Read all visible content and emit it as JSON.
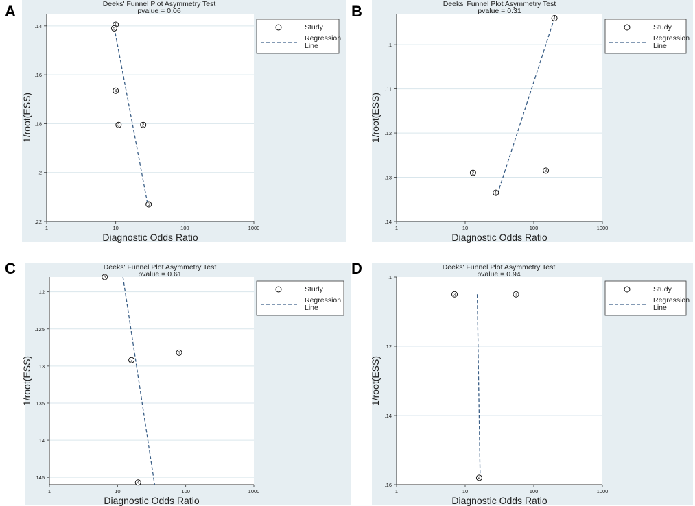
{
  "chart_data": [
    {
      "type": "scatter",
      "panel_label": "A",
      "title": "Deeks' Funnel Plot Asymmetry Test",
      "pvalue_label": "pvalue =",
      "pvalue": "0.06",
      "xlabel": "Diagnostic Odds Ratio",
      "ylabel": "1/root(ESS)",
      "x_scale": "log",
      "xlim": [
        1,
        1000
      ],
      "x_ticks": [
        "1",
        "10",
        "100",
        "1000"
      ],
      "ylim": [
        0.135,
        0.22
      ],
      "y_ticks": [
        ".14",
        ".16",
        ".18",
        ".2",
        ".22"
      ],
      "y_reversed": true,
      "points": [
        {
          "id": "1",
          "x": 10,
          "y": 0.1395
        },
        {
          "id": "5",
          "x": 9.5,
          "y": 0.141
        },
        {
          "id": "4",
          "x": 10,
          "y": 0.1665
        },
        {
          "id": "3",
          "x": 11,
          "y": 0.1805
        },
        {
          "id": "2",
          "x": 25,
          "y": 0.1805
        },
        {
          "id": "6",
          "x": 30,
          "y": 0.213
        }
      ],
      "regression_line": [
        {
          "x": 9.2,
          "y": 0.1385
        },
        {
          "x": 29,
          "y": 0.213
        }
      ],
      "legend": {
        "study": "Study",
        "regression": "Regression Line"
      }
    },
    {
      "type": "scatter",
      "panel_label": "B",
      "title": "Deeks' Funnel Plot Asymmetry Test",
      "pvalue_label": "pvalue =",
      "pvalue": "0.31",
      "xlabel": "Diagnostic Odds Ratio",
      "ylabel": "1/root(ESS)",
      "x_scale": "log",
      "xlim": [
        1,
        1000
      ],
      "x_ticks": [
        "1",
        "10",
        "100",
        "1000"
      ],
      "ylim": [
        0.093,
        0.14
      ],
      "y_ticks": [
        ".1",
        ".11",
        ".12",
        ".13",
        ".14"
      ],
      "y_reversed": true,
      "points": [
        {
          "id": "4",
          "x": 200,
          "y": 0.094
        },
        {
          "id": "2",
          "x": 13,
          "y": 0.129
        },
        {
          "id": "3",
          "x": 150,
          "y": 0.1285
        },
        {
          "id": "1",
          "x": 28,
          "y": 0.1335
        }
      ],
      "regression_line": [
        {
          "x": 200,
          "y": 0.094
        },
        {
          "x": 30,
          "y": 0.1335
        }
      ],
      "legend": {
        "study": "Study",
        "regression": "Regression Line"
      }
    },
    {
      "type": "scatter",
      "panel_label": "C",
      "title": "Deeks' Funnel Plot Asymmetry Test",
      "pvalue_label": "pvalue =",
      "pvalue": "0.61",
      "xlabel": "Diagnostic Odds Ratio",
      "ylabel": "1/root(ESS)",
      "x_scale": "log",
      "xlim": [
        1,
        1000
      ],
      "x_ticks": [
        "1",
        "10",
        "100",
        "1000"
      ],
      "ylim": [
        0.118,
        0.146
      ],
      "y_ticks": [
        ".12",
        ".125",
        ".13",
        ".135",
        ".14",
        ".145"
      ],
      "y_reversed": true,
      "points": [
        {
          "id": "3",
          "x": 6.5,
          "y": 0.118
        },
        {
          "id": "2",
          "x": 16,
          "y": 0.1292
        },
        {
          "id": "1",
          "x": 80,
          "y": 0.1282
        },
        {
          "id": "4",
          "x": 20,
          "y": 0.1457
        }
      ],
      "regression_line": [
        {
          "x": 12,
          "y": 0.118
        },
        {
          "x": 35,
          "y": 0.146
        }
      ],
      "legend": {
        "study": "Study",
        "regression": "Regression Line"
      }
    },
    {
      "type": "scatter",
      "panel_label": "D",
      "title": "Deeks' Funnel Plot Asymmetry Test",
      "pvalue_label": "pvalue =",
      "pvalue": "0.94",
      "xlabel": "Diagnostic Odds Ratio",
      "ylabel": "1/root(ESS)",
      "x_scale": "log",
      "xlim": [
        1,
        1000
      ],
      "x_ticks": [
        "1",
        "10",
        "100",
        "1000"
      ],
      "ylim": [
        0.1,
        0.16
      ],
      "y_ticks": [
        ".1",
        ".12",
        ".14",
        ".16"
      ],
      "y_reversed": true,
      "points": [
        {
          "id": "3",
          "x": 7,
          "y": 0.105
        },
        {
          "id": "1",
          "x": 55,
          "y": 0.105
        },
        {
          "id": "4",
          "x": 16,
          "y": 0.158
        }
      ],
      "regression_line": [
        {
          "x": 15,
          "y": 0.105
        },
        {
          "x": 16.5,
          "y": 0.157
        }
      ],
      "legend": {
        "study": "Study",
        "regression": "Regression Line"
      }
    }
  ]
}
